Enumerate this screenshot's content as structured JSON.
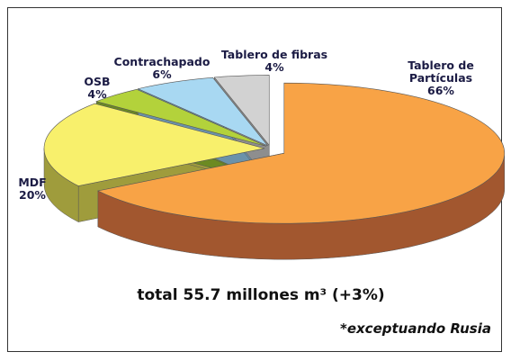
{
  "chart_data": {
    "type": "pie",
    "categories": [
      "Tablero de Partículas",
      "MDF",
      "OSB",
      "Contrachapado",
      "Tablero de fibras"
    ],
    "values": [
      66,
      20,
      4,
      6,
      4
    ],
    "value_labels": [
      "66%",
      "20%",
      "4%",
      "6%",
      "4%"
    ],
    "colors": [
      "#f8a346",
      "#f8f06c",
      "#b3d23b",
      "#a8d8f2",
      "#d2d2d2"
    ],
    "side_colors": [
      "#a2572f",
      "#9f9c3c",
      "#6c8a22",
      "#6b92aa",
      "#8e8e8e"
    ],
    "annotations": [
      "total 55.7 millones m³ (+3%)",
      "*exceptuando Rusia"
    ]
  }
}
